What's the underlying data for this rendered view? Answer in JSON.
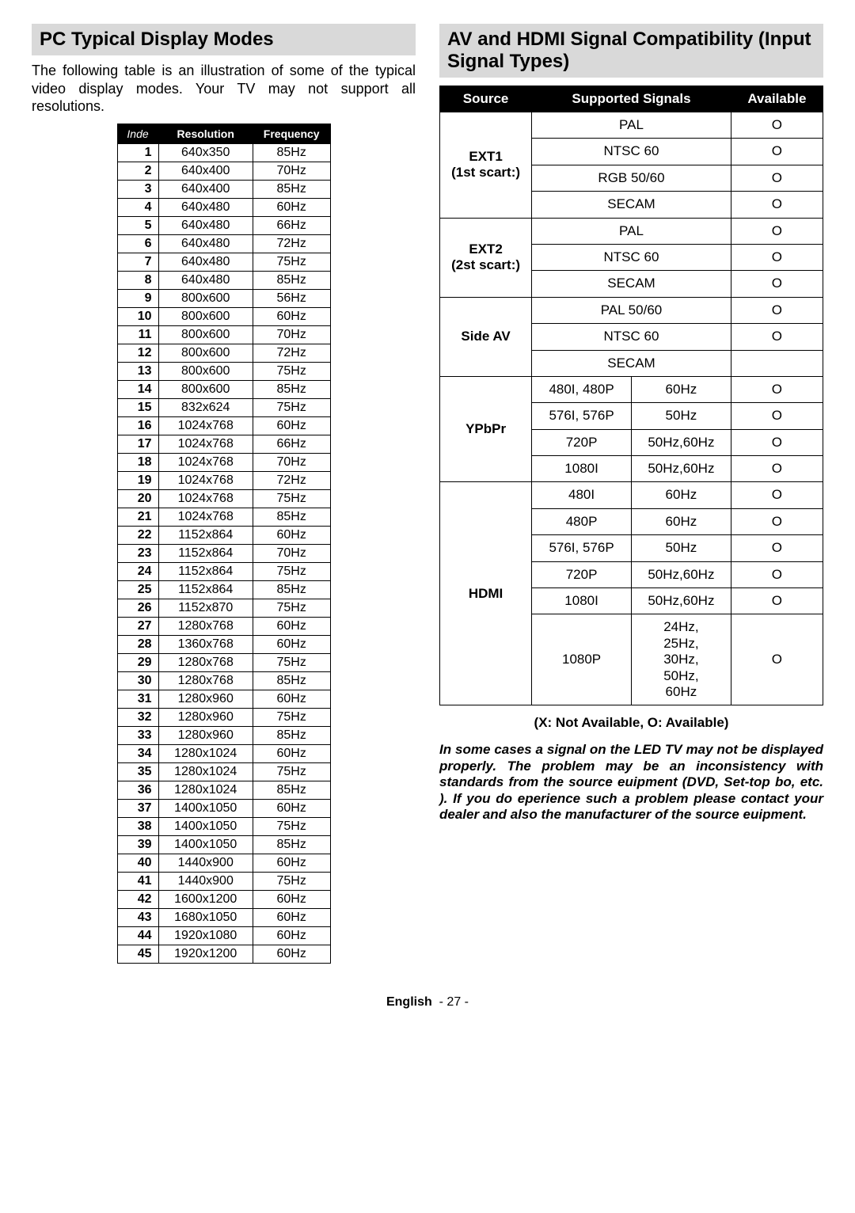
{
  "left": {
    "heading": "PC Typical Display Modes",
    "intro": "The following table is an illustration of some of the typical video display modes. Your TV may not support all resolutions.",
    "table": {
      "headers": {
        "index": "Inde",
        "resolution": "Resolution",
        "frequency": "Frequency"
      },
      "rows": [
        {
          "i": "1",
          "r": "640x350",
          "f": "85Hz"
        },
        {
          "i": "2",
          "r": "640x400",
          "f": "70Hz"
        },
        {
          "i": "3",
          "r": "640x400",
          "f": "85Hz"
        },
        {
          "i": "4",
          "r": "640x480",
          "f": "60Hz"
        },
        {
          "i": "5",
          "r": "640x480",
          "f": "66Hz"
        },
        {
          "i": "6",
          "r": "640x480",
          "f": "72Hz"
        },
        {
          "i": "7",
          "r": "640x480",
          "f": "75Hz"
        },
        {
          "i": "8",
          "r": "640x480",
          "f": "85Hz"
        },
        {
          "i": "9",
          "r": "800x600",
          "f": "56Hz"
        },
        {
          "i": "10",
          "r": "800x600",
          "f": "60Hz"
        },
        {
          "i": "11",
          "r": "800x600",
          "f": "70Hz"
        },
        {
          "i": "12",
          "r": "800x600",
          "f": "72Hz"
        },
        {
          "i": "13",
          "r": "800x600",
          "f": "75Hz"
        },
        {
          "i": "14",
          "r": "800x600",
          "f": "85Hz"
        },
        {
          "i": "15",
          "r": "832x624",
          "f": "75Hz"
        },
        {
          "i": "16",
          "r": "1024x768",
          "f": "60Hz"
        },
        {
          "i": "17",
          "r": "1024x768",
          "f": "66Hz"
        },
        {
          "i": "18",
          "r": "1024x768",
          "f": "70Hz"
        },
        {
          "i": "19",
          "r": "1024x768",
          "f": "72Hz"
        },
        {
          "i": "20",
          "r": "1024x768",
          "f": "75Hz"
        },
        {
          "i": "21",
          "r": "1024x768",
          "f": "85Hz"
        },
        {
          "i": "22",
          "r": "1152x864",
          "f": "60Hz"
        },
        {
          "i": "23",
          "r": "1152x864",
          "f": "70Hz"
        },
        {
          "i": "24",
          "r": "1152x864",
          "f": "75Hz"
        },
        {
          "i": "25",
          "r": "1152x864",
          "f": "85Hz"
        },
        {
          "i": "26",
          "r": "1152x870",
          "f": "75Hz"
        },
        {
          "i": "27",
          "r": "1280x768",
          "f": "60Hz"
        },
        {
          "i": "28",
          "r": "1360x768",
          "f": "60Hz"
        },
        {
          "i": "29",
          "r": "1280x768",
          "f": "75Hz"
        },
        {
          "i": "30",
          "r": "1280x768",
          "f": "85Hz"
        },
        {
          "i": "31",
          "r": "1280x960",
          "f": "60Hz"
        },
        {
          "i": "32",
          "r": "1280x960",
          "f": "75Hz"
        },
        {
          "i": "33",
          "r": "1280x960",
          "f": "85Hz"
        },
        {
          "i": "34",
          "r": "1280x1024",
          "f": "60Hz"
        },
        {
          "i": "35",
          "r": "1280x1024",
          "f": "75Hz"
        },
        {
          "i": "36",
          "r": "1280x1024",
          "f": "85Hz"
        },
        {
          "i": "37",
          "r": "1400x1050",
          "f": "60Hz"
        },
        {
          "i": "38",
          "r": "1400x1050",
          "f": "75Hz"
        },
        {
          "i": "39",
          "r": "1400x1050",
          "f": "85Hz"
        },
        {
          "i": "40",
          "r": "1440x900",
          "f": "60Hz"
        },
        {
          "i": "41",
          "r": "1440x900",
          "f": "75Hz"
        },
        {
          "i": "42",
          "r": "1600x1200",
          "f": "60Hz"
        },
        {
          "i": "43",
          "r": "1680x1050",
          "f": "60Hz"
        },
        {
          "i": "44",
          "r": "1920x1080",
          "f": "60Hz"
        },
        {
          "i": "45",
          "r": "1920x1200",
          "f": "60Hz"
        }
      ]
    }
  },
  "right": {
    "heading": "AV and HDMI Signal Compatibility (Input Signal Types)",
    "table": {
      "headers": {
        "source": "Source",
        "signals": "Supported Signals",
        "available": "Available"
      },
      "groups": [
        {
          "src": "EXT1\n(1st scart:)",
          "rows": [
            [
              "PAL",
              "O"
            ],
            [
              "NTSC 60",
              "O"
            ],
            [
              "RGB 50/60",
              "O"
            ],
            [
              "SECAM",
              "O"
            ]
          ]
        },
        {
          "src": "EXT2\n(2st scart:)",
          "rows": [
            [
              "PAL",
              "O"
            ],
            [
              "NTSC 60",
              "O"
            ],
            [
              "SECAM",
              "O"
            ]
          ]
        },
        {
          "src": "Side AV",
          "rows": [
            [
              "PAL 50/60",
              "O"
            ],
            [
              "NTSC 60",
              "O"
            ],
            [
              "SECAM",
              ""
            ]
          ]
        },
        {
          "src": "YPbPr",
          "rows": [
            [
              "480I, 480P",
              "60Hz",
              "O"
            ],
            [
              "576I, 576P",
              "50Hz",
              "O"
            ],
            [
              "720P",
              "50Hz,60Hz",
              "O"
            ],
            [
              "1080I",
              "50Hz,60Hz",
              "O"
            ]
          ]
        },
        {
          "src": "HDMI",
          "rows": [
            [
              "480I",
              "60Hz",
              "O"
            ],
            [
              "480P",
              "60Hz",
              "O"
            ],
            [
              "576I, 576P",
              "50Hz",
              "O"
            ],
            [
              "720P",
              "50Hz,60Hz",
              "O"
            ],
            [
              "1080I",
              "50Hz,60Hz",
              "O"
            ],
            [
              "1080P",
              "24Hz,\n25Hz,\n30Hz,\n50Hz,\n60Hz",
              "O"
            ]
          ]
        }
      ]
    },
    "legend": "(X: Not Available, O: Available)",
    "note": "In some cases a signal on the LED TV may not be displayed properly. The problem may be an inconsistency with standards from the source euipment (DVD, Set-top bo, etc. ). If you do eperience such a problem please contact your dealer and also the manufacturer of the source euipment."
  },
  "footer": {
    "lang": "English",
    "page": "- 27 -"
  }
}
